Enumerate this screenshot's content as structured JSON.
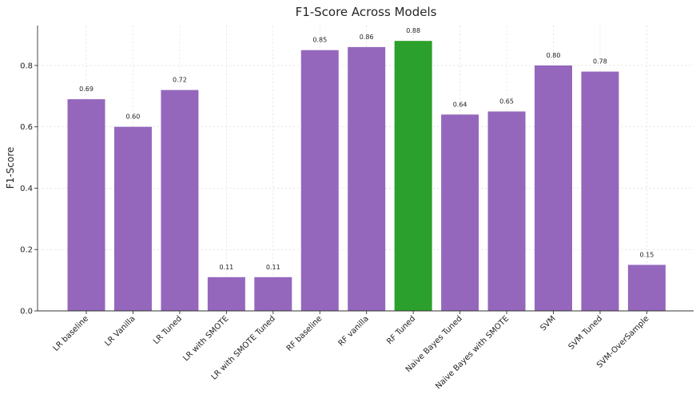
{
  "chart_data": {
    "type": "bar",
    "title": "F1-Score Across Models",
    "xlabel": "",
    "ylabel": "F1-Score",
    "categories": [
      "LR baseline",
      "LR Vanilla",
      "LR Tuned",
      "LR with SMOTE",
      "LR with SMOTE Tuned",
      "RF baseline",
      "RF vanilla",
      "RF Tuned",
      "Naive Bayes Tuned",
      "Naive Bayes with SMOTE",
      "SVM",
      "SVM Tuned",
      "SVM-OverSample"
    ],
    "values": [
      0.69,
      0.6,
      0.72,
      0.11,
      0.11,
      0.85,
      0.86,
      0.88,
      0.64,
      0.65,
      0.8,
      0.78,
      0.15
    ],
    "value_labels": [
      "0.69",
      "0.60",
      "0.72",
      "0.11",
      "0.11",
      "0.85",
      "0.86",
      "0.88",
      "0.64",
      "0.65",
      "0.80",
      "0.78",
      "0.15"
    ],
    "highlight_index": 7,
    "colors": {
      "bar": "#9467bd",
      "highlight": "#2ca02c"
    },
    "ylim": [
      0,
      0.93
    ],
    "yticks": [
      0.0,
      0.2,
      0.4,
      0.6,
      0.8
    ],
    "ytick_labels": [
      "0.0",
      "0.2",
      "0.4",
      "0.6",
      "0.8"
    ],
    "grid": true,
    "legend": "none"
  }
}
